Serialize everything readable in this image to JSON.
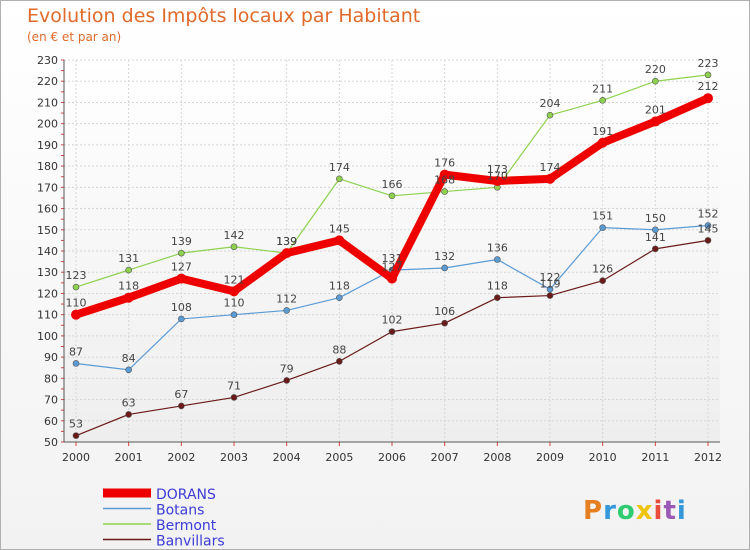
{
  "chart_data": {
    "type": "line",
    "title": "Evolution des Impôts locaux par Habitant",
    "subtitle": "(en € et par an)",
    "xlabel": "",
    "ylabel": "",
    "categories": [
      "2000",
      "2001",
      "2002",
      "2003",
      "2004",
      "2005",
      "2006",
      "2007",
      "2008",
      "2009",
      "2010",
      "2011",
      "2012"
    ],
    "ylim": [
      50,
      230
    ],
    "yticks": [
      50,
      60,
      70,
      80,
      90,
      100,
      110,
      120,
      130,
      140,
      150,
      160,
      170,
      180,
      190,
      200,
      210,
      220,
      230
    ],
    "grid": true,
    "legend_position": "bottom-left",
    "series": [
      {
        "name": "DORANS",
        "color": "#ee0000",
        "values": [
          110,
          118,
          127,
          121,
          139,
          145,
          127,
          176,
          173,
          174,
          191,
          201,
          212
        ]
      },
      {
        "name": "Botans",
        "color": "#5b9bd5",
        "values": [
          87,
          84,
          108,
          110,
          112,
          118,
          131,
          132,
          136,
          122,
          151,
          150,
          152
        ]
      },
      {
        "name": "Bermont",
        "color": "#8fd14f",
        "values": [
          123,
          131,
          139,
          142,
          139,
          174,
          166,
          168,
          170,
          204,
          211,
          220,
          223
        ]
      },
      {
        "name": "Banvillars",
        "color": "#6b1a1a",
        "values": [
          53,
          63,
          67,
          71,
          79,
          88,
          102,
          106,
          118,
          119,
          126,
          141,
          145
        ]
      }
    ]
  },
  "branding": {
    "logo_text": "Proxiti"
  }
}
